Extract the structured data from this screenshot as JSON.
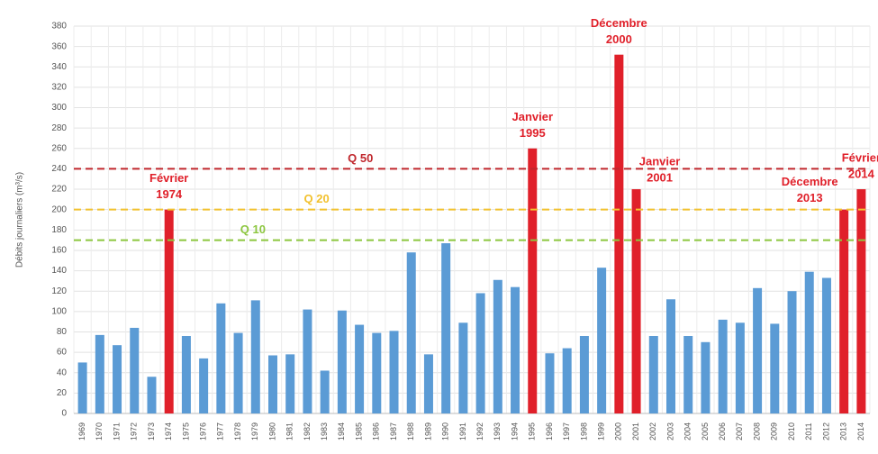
{
  "chart_data": {
    "type": "bar",
    "ylabel": "Débits journaliers (m³/s)",
    "categories": [
      "1969",
      "1970",
      "1971",
      "1972",
      "1973",
      "1974",
      "1975",
      "1976",
      "1977",
      "1978",
      "1979",
      "1980",
      "1981",
      "1982",
      "1983",
      "1984",
      "1985",
      "1986",
      "1987",
      "1988",
      "1989",
      "1990",
      "1991",
      "1992",
      "1993",
      "1994",
      "1995",
      "1996",
      "1997",
      "1998",
      "1999",
      "2000",
      "2001",
      "2002",
      "2003",
      "2004",
      "2005",
      "2006",
      "2007",
      "2008",
      "2009",
      "2010",
      "2011",
      "2012",
      "2013",
      "2014"
    ],
    "values": [
      50,
      77,
      67,
      84,
      36,
      200,
      76,
      54,
      108,
      79,
      111,
      57,
      58,
      102,
      42,
      101,
      87,
      79,
      81,
      158,
      58,
      167,
      89,
      118,
      131,
      124,
      260,
      59,
      64,
      76,
      143,
      352,
      220,
      76,
      112,
      76,
      70,
      92,
      89,
      123,
      88,
      120,
      139,
      133,
      200,
      220
    ],
    "colors": [
      "#5b9bd5",
      "#5b9bd5",
      "#5b9bd5",
      "#5b9bd5",
      "#5b9bd5",
      "#e0202a",
      "#5b9bd5",
      "#5b9bd5",
      "#5b9bd5",
      "#5b9bd5",
      "#5b9bd5",
      "#5b9bd5",
      "#5b9bd5",
      "#5b9bd5",
      "#5b9bd5",
      "#5b9bd5",
      "#5b9bd5",
      "#5b9bd5",
      "#5b9bd5",
      "#5b9bd5",
      "#5b9bd5",
      "#5b9bd5",
      "#5b9bd5",
      "#5b9bd5",
      "#5b9bd5",
      "#5b9bd5",
      "#e0202a",
      "#5b9bd5",
      "#5b9bd5",
      "#5b9bd5",
      "#5b9bd5",
      "#e0202a",
      "#e0202a",
      "#5b9bd5",
      "#5b9bd5",
      "#5b9bd5",
      "#5b9bd5",
      "#5b9bd5",
      "#5b9bd5",
      "#5b9bd5",
      "#5b9bd5",
      "#5b9bd5",
      "#5b9bd5",
      "#5b9bd5",
      "#e0202a",
      "#e0202a"
    ],
    "ylim": [
      0,
      380
    ],
    "yticks": [
      0,
      20,
      40,
      60,
      80,
      100,
      120,
      140,
      160,
      180,
      200,
      220,
      240,
      260,
      280,
      300,
      320,
      340,
      360,
      380
    ],
    "grid": true,
    "reference_lines": [
      {
        "label": "Q 50",
        "value": 240,
        "color": "#c0272d"
      },
      {
        "label": "Q 20",
        "value": 200,
        "color": "#f2c12e"
      },
      {
        "label": "Q 10",
        "value": 170,
        "color": "#8cc63f"
      }
    ],
    "annotations": [
      {
        "lines": [
          "Février",
          "1974"
        ],
        "category": "1974",
        "color": "#e0202a"
      },
      {
        "lines": [
          "Janvier",
          "1995"
        ],
        "category": "1995",
        "color": "#e0202a"
      },
      {
        "lines": [
          "Décembre",
          "2000"
        ],
        "category": "2000",
        "color": "#e0202a"
      },
      {
        "lines": [
          "Janvier",
          "2001"
        ],
        "category": "2001",
        "color": "#e0202a"
      },
      {
        "lines": [
          "Décembre",
          "2013"
        ],
        "category": "2013",
        "color": "#e0202a"
      },
      {
        "lines": [
          "Février",
          "2014"
        ],
        "category": "2014",
        "color": "#e0202a"
      }
    ]
  }
}
